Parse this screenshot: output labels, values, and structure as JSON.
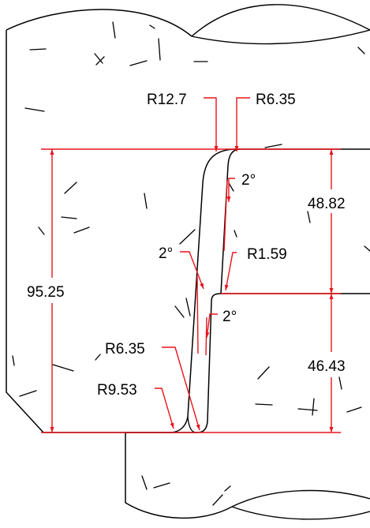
{
  "drawing": {
    "colors": {
      "outline": "#000000",
      "dimension": "#e8141c",
      "hatch": "#000000",
      "background": "#ffffff"
    },
    "dimensions": {
      "overall_height": "95.25",
      "upper_step": "48.82",
      "lower_step": "46.43"
    },
    "radii": {
      "top_outer": "R12.7",
      "top_inner": "R6.35",
      "step": "R1.59",
      "bottom_inner": "R6.35",
      "bottom_outer": "R9.53"
    },
    "angles": {
      "upper_wall": "2°",
      "left_wall": "2°",
      "lower_wall": "2°"
    }
  }
}
